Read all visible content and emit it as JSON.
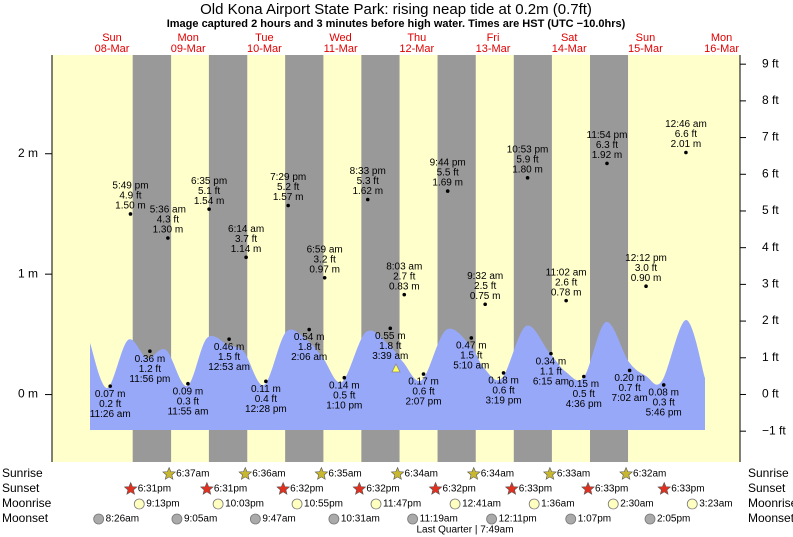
{
  "chart_data": {
    "type": "tide",
    "title": "Old Kona Airport State Park: rising  neap tide at 0.2m (0.7ft)",
    "subtitle": "Image captured 2 hours and 3 minutes before high water. Times are HST (UTC −10.0hrs)",
    "days": [
      {
        "weekday": "Sun",
        "date": "08-Mar"
      },
      {
        "weekday": "Mon",
        "date": "09-Mar"
      },
      {
        "weekday": "Tue",
        "date": "10-Mar"
      },
      {
        "weekday": "Wed",
        "date": "11-Mar"
      },
      {
        "weekday": "Thu",
        "date": "12-Mar"
      },
      {
        "weekday": "Fri",
        "date": "13-Mar"
      },
      {
        "weekday": "Sat",
        "date": "14-Mar"
      },
      {
        "weekday": "Sun",
        "date": "15-Mar"
      },
      {
        "weekday": "Mon",
        "date": "16-Mar"
      }
    ],
    "ylim": [
      -0.56,
      2.82
    ],
    "yticks": [
      {
        "value": 0,
        "label": "0 m"
      },
      {
        "value": 1,
        "label": "1 m"
      },
      {
        "value": 2,
        "label": "2 m"
      }
    ],
    "y2lim": [
      -1.84,
      9.25
    ],
    "y2ticks": [
      {
        "value": -1,
        "label": "−1 ft"
      },
      {
        "value": 0,
        "label": "0 ft"
      },
      {
        "value": 1,
        "label": "1 ft"
      },
      {
        "value": 2,
        "label": "2 ft"
      },
      {
        "value": 3,
        "label": "3 ft"
      },
      {
        "value": 4,
        "label": "4 ft"
      },
      {
        "value": 5,
        "label": "5 ft"
      },
      {
        "value": 6,
        "label": "6 ft"
      },
      {
        "value": 7,
        "label": "7 ft"
      },
      {
        "value": 8,
        "label": "8 ft"
      },
      {
        "value": 9,
        "label": "9 ft"
      }
    ],
    "tides": [
      {
        "day": 0,
        "time": "11:26 am",
        "height": 0.07,
        "height_label": "0.07 m",
        "feet_label": "0.2 ft"
      },
      {
        "day": 0,
        "time": "5:49 pm",
        "height": 1.5,
        "height_label": "1.50 m",
        "feet_label": "4.9 ft"
      },
      {
        "day": 0,
        "time": "11:56 pm",
        "height": 0.36,
        "height_label": "0.36 m",
        "feet_label": "1.2 ft"
      },
      {
        "day": 1,
        "time": "5:36 am",
        "height": 1.3,
        "height_label": "1.30 m",
        "feet_label": "4.3 ft"
      },
      {
        "day": 1,
        "time": "11:55 am",
        "height": 0.09,
        "height_label": "0.09 m",
        "feet_label": "0.3 ft"
      },
      {
        "day": 1,
        "time": "6:35 pm",
        "height": 1.54,
        "height_label": "1.54 m",
        "feet_label": "5.1 ft"
      },
      {
        "day": 2,
        "time": "12:53 am",
        "height": 0.46,
        "height_label": "0.46 m",
        "feet_label": "1.5 ft"
      },
      {
        "day": 2,
        "time": "6:14 am",
        "height": 1.14,
        "height_label": "1.14 m",
        "feet_label": "3.7 ft"
      },
      {
        "day": 2,
        "time": "12:28 pm",
        "height": 0.11,
        "height_label": "0.11 m",
        "feet_label": "0.4 ft"
      },
      {
        "day": 2,
        "time": "7:29 pm",
        "height": 1.57,
        "height_label": "1.57 m",
        "feet_label": "5.2 ft"
      },
      {
        "day": 3,
        "time": "2:06 am",
        "height": 0.54,
        "height_label": "0.54 m",
        "feet_label": "1.8 ft"
      },
      {
        "day": 3,
        "time": "6:59 am",
        "height": 0.97,
        "height_label": "0.97 m",
        "feet_label": "3.2 ft"
      },
      {
        "day": 3,
        "time": "1:10 pm",
        "height": 0.14,
        "height_label": "0.14 m",
        "feet_label": "0.5 ft"
      },
      {
        "day": 3,
        "time": "8:33 pm",
        "height": 1.62,
        "height_label": "1.62 m",
        "feet_label": "5.3 ft"
      },
      {
        "day": 4,
        "time": "3:39 am",
        "height": 0.55,
        "height_label": "0.55 m",
        "feet_label": "1.8 ft"
      },
      {
        "day": 4,
        "time": "8:03 am",
        "height": 0.83,
        "height_label": "0.83 m",
        "feet_label": "2.7 ft"
      },
      {
        "day": 4,
        "time": "2:07 pm",
        "height": 0.17,
        "height_label": "0.17 m",
        "feet_label": "0.6 ft"
      },
      {
        "day": 4,
        "time": "9:44 pm",
        "height": 1.69,
        "height_label": "1.69 m",
        "feet_label": "5.5 ft"
      },
      {
        "day": 5,
        "time": "5:10 am",
        "height": 0.47,
        "height_label": "0.47 m",
        "feet_label": "1.5 ft"
      },
      {
        "day": 5,
        "time": "9:32 am",
        "height": 0.75,
        "height_label": "0.75 m",
        "feet_label": "2.5 ft"
      },
      {
        "day": 5,
        "time": "3:19 pm",
        "height": 0.18,
        "height_label": "0.18 m",
        "feet_label": "0.6 ft"
      },
      {
        "day": 5,
        "time": "10:53 pm",
        "height": 1.8,
        "height_label": "1.80 m",
        "feet_label": "5.9 ft"
      },
      {
        "day": 6,
        "time": "6:15 am",
        "height": 0.34,
        "height_label": "0.34 m",
        "feet_label": "1.1 ft"
      },
      {
        "day": 6,
        "time": "11:02 am",
        "height": 0.78,
        "height_label": "0.78 m",
        "feet_label": "2.6 ft"
      },
      {
        "day": 6,
        "time": "4:36 pm",
        "height": 0.15,
        "height_label": "0.15 m",
        "feet_label": "0.5 ft"
      },
      {
        "day": 6,
        "time": "11:54 pm",
        "height": 1.92,
        "height_label": "1.92 m",
        "feet_label": "6.3 ft"
      },
      {
        "day": 7,
        "time": "7:02 am",
        "height": 0.2,
        "height_label": "0.20 m",
        "feet_label": "0.7 ft"
      },
      {
        "day": 7,
        "time": "12:12 pm",
        "height": 0.9,
        "height_label": "0.90 m",
        "feet_label": "3.0 ft"
      },
      {
        "day": 7,
        "time": "5:46 pm",
        "height": 0.08,
        "height_label": "0.08 m",
        "feet_label": "0.3 ft"
      },
      {
        "day": 8,
        "time": "12:46 am",
        "height": 2.01,
        "height_label": "2.01 m",
        "feet_label": "6.6 ft"
      }
    ],
    "sunrise": {
      "label": "Sunrise",
      "events": [
        {
          "day": 1,
          "time": "6:37am"
        },
        {
          "day": 2,
          "time": "6:36am"
        },
        {
          "day": 3,
          "time": "6:35am"
        },
        {
          "day": 4,
          "time": "6:34am"
        },
        {
          "day": 5,
          "time": "6:34am"
        },
        {
          "day": 6,
          "time": "6:33am"
        },
        {
          "day": 7,
          "time": "6:32am"
        }
      ]
    },
    "sunset": {
      "label": "Sunset",
      "events": [
        {
          "day": 0,
          "time": "6:31pm"
        },
        {
          "day": 1,
          "time": "6:31pm"
        },
        {
          "day": 2,
          "time": "6:32pm"
        },
        {
          "day": 3,
          "time": "6:32pm"
        },
        {
          "day": 4,
          "time": "6:32pm"
        },
        {
          "day": 5,
          "time": "6:33pm"
        },
        {
          "day": 6,
          "time": "6:33pm"
        },
        {
          "day": 7,
          "time": "6:33pm"
        }
      ]
    },
    "moonrise": {
      "label": "Moonrise",
      "events": [
        {
          "day": 0,
          "time": "9:13pm"
        },
        {
          "day": 1,
          "time": "10:03pm"
        },
        {
          "day": 2,
          "time": "10:55pm"
        },
        {
          "day": 3,
          "time": "11:47pm"
        },
        {
          "day": 5,
          "time": "12:41am"
        },
        {
          "day": 6,
          "time": "1:36am"
        },
        {
          "day": 7,
          "time": "2:30am"
        },
        {
          "day": 8,
          "time": "3:23am"
        }
      ]
    },
    "moonset": {
      "label": "Moonset",
      "events": [
        {
          "day": 0,
          "time": "8:26am"
        },
        {
          "day": 1,
          "time": "9:05am"
        },
        {
          "day": 2,
          "time": "9:47am"
        },
        {
          "day": 3,
          "time": "10:31am"
        },
        {
          "day": 4,
          "time": "11:19am"
        },
        {
          "day": 5,
          "time": "12:11pm"
        },
        {
          "day": 6,
          "time": "1:07pm"
        },
        {
          "day": 7,
          "time": "2:05pm"
        }
      ]
    },
    "moon_phase": "Last Quarter | 7:49am"
  }
}
